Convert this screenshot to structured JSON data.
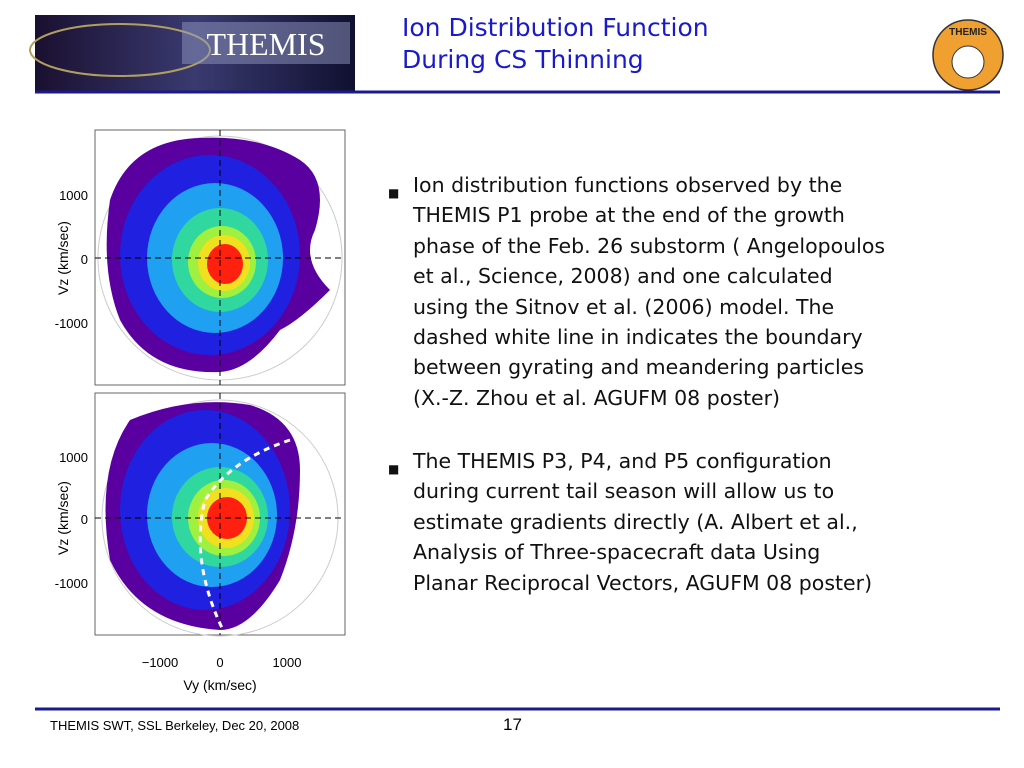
{
  "header": {
    "logo_text": "THEMIS",
    "title_lines": [
      "Ion Distribution Function",
      "During CS Thinning"
    ],
    "badge_text": "THEMIS"
  },
  "figure": {
    "top_yticks": [
      "1000",
      "0",
      "-1000"
    ],
    "bottom_yticks": [
      "1000",
      "0",
      "-1000"
    ],
    "ylabel_top": "Vz (km/sec)",
    "ylabel_bottom": "Vz (km/sec)",
    "xticks": [
      "−1000",
      "0",
      "1000"
    ],
    "xlabel": "Vy (km/sec)"
  },
  "bullets": [
    {
      "lines": [
        "Ion distribution functions observed by the",
        "THEMIS P1 probe at the end of the growth",
        "phase of the Feb. 26 substorm ( Angelopoulos",
        "et al., Science, 2008) and one calculated",
        "using the Sitnov et al. (2006) model. The",
        "dashed white line in indicates the boundary",
        "between gyrating and meandering particles",
        "(X.-Z. Zhou et al. AGUFM 08 poster)"
      ]
    },
    {
      "lines": [
        "The THEMIS P3, P4, and P5 configuration",
        "during current tail season will allow us to",
        "estimate gradients directly (A. Albert et al.,",
        "Analysis of Three-spacecraft data Using",
        "Planar Reciprocal Vectors, AGUFM 08 poster)"
      ]
    }
  ],
  "footer": {
    "left": "THEMIS SWT, SSL Berkeley, Dec 20, 2008",
    "page": "17"
  }
}
